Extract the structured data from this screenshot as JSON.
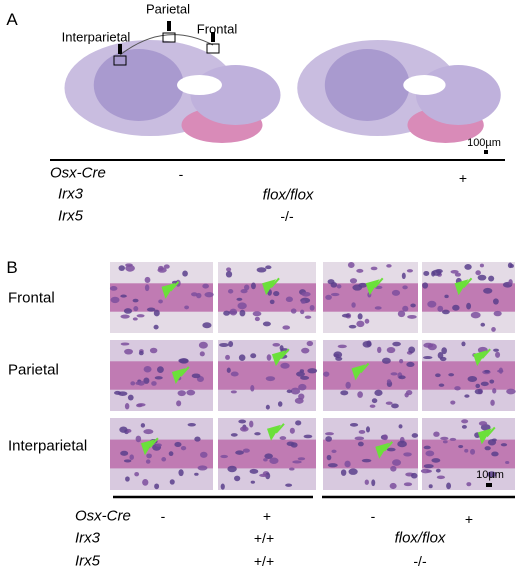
{
  "panel_a": {
    "label": "A",
    "region_labels": [
      "Interparietal",
      "Parietal",
      "Frontal"
    ],
    "scale_bar": "100µm",
    "genotype": {
      "osx_cre": {
        "name": "Osx-Cre",
        "values": [
          "-",
          "+"
        ]
      },
      "irx3": {
        "name": "Irx3",
        "value": "flox/flox"
      },
      "irx5": {
        "name": "Irx5",
        "value": "-/-"
      }
    }
  },
  "panel_b": {
    "label": "B",
    "rows": [
      "Frontal",
      "Parietal",
      "Interparietal"
    ],
    "scale_bar": "10µm",
    "genotype": {
      "osx_cre": {
        "name": "Osx-Cre",
        "values": [
          "-",
          "+",
          "-",
          "+"
        ]
      },
      "irx3": {
        "name": "Irx3",
        "values": [
          "+/+",
          "flox/flox"
        ]
      },
      "irx5": {
        "name": "Irx5",
        "values": [
          "+/+",
          "-/-"
        ]
      }
    }
  }
}
